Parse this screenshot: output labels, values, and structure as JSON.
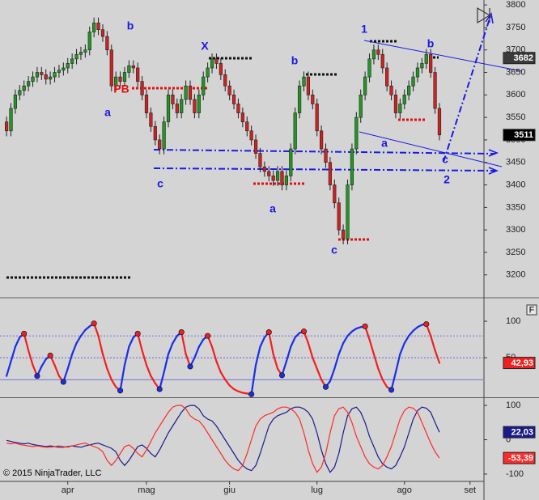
{
  "footer": "© 2015 NinjaTrader, LLC",
  "panel_button": "F",
  "chart_data": [
    {
      "type": "candlestick",
      "up_color": "#1f9a1f",
      "down_color": "#d42020",
      "xlim": [
        -1.5,
        109
      ],
      "ylim": [
        3151,
        3811
      ],
      "yticks": [
        3200,
        3250,
        3300,
        3350,
        3400,
        3450,
        3500,
        3550,
        3600,
        3650,
        3700,
        3750,
        3800
      ],
      "price_labels": [
        3682,
        3511
      ],
      "annotations": [
        "b",
        "a",
        "c",
        "X",
        "b",
        "a",
        "c",
        "1",
        "a",
        "b",
        "c",
        "2",
        "PB"
      ],
      "ohlc": [
        [
          3540,
          3552,
          3508,
          3520
        ],
        [
          3520,
          3582,
          3508,
          3570
        ],
        [
          3570,
          3612,
          3558,
          3600
        ],
        [
          3600,
          3622,
          3588,
          3610
        ],
        [
          3610,
          3632,
          3598,
          3620
        ],
        [
          3620,
          3642,
          3608,
          3630
        ],
        [
          3630,
          3652,
          3618,
          3640
        ],
        [
          3640,
          3662,
          3628,
          3650
        ],
        [
          3650,
          3662,
          3633,
          3645
        ],
        [
          3645,
          3657,
          3623,
          3635
        ],
        [
          3635,
          3652,
          3623,
          3640
        ],
        [
          3640,
          3662,
          3628,
          3650
        ],
        [
          3650,
          3667,
          3638,
          3655
        ],
        [
          3655,
          3672,
          3643,
          3660
        ],
        [
          3660,
          3682,
          3648,
          3670
        ],
        [
          3670,
          3692,
          3658,
          3680
        ],
        [
          3680,
          3702,
          3668,
          3690
        ],
        [
          3690,
          3707,
          3678,
          3695
        ],
        [
          3695,
          3712,
          3683,
          3700
        ],
        [
          3700,
          3752,
          3688,
          3740
        ],
        [
          3740,
          3772,
          3728,
          3760
        ],
        [
          3760,
          3772,
          3733,
          3745
        ],
        [
          3745,
          3757,
          3718,
          3730
        ],
        [
          3730,
          3742,
          3688,
          3700
        ],
        [
          3700,
          3712,
          3608,
          3620
        ],
        [
          3620,
          3652,
          3608,
          3640
        ],
        [
          3640,
          3652,
          3618,
          3630
        ],
        [
          3630,
          3662,
          3618,
          3650
        ],
        [
          3650,
          3677,
          3638,
          3665
        ],
        [
          3665,
          3677,
          3648,
          3660
        ],
        [
          3660,
          3672,
          3618,
          3630
        ],
        [
          3630,
          3642,
          3588,
          3600
        ],
        [
          3600,
          3612,
          3548,
          3560
        ],
        [
          3560,
          3572,
          3518,
          3530
        ],
        [
          3530,
          3542,
          3488,
          3500
        ],
        [
          3500,
          3512,
          3468,
          3480
        ],
        [
          3480,
          3552,
          3468,
          3540
        ],
        [
          3540,
          3612,
          3528,
          3600
        ],
        [
          3600,
          3612,
          3568,
          3580
        ],
        [
          3580,
          3592,
          3548,
          3560
        ],
        [
          3560,
          3602,
          3548,
          3590
        ],
        [
          3590,
          3632,
          3578,
          3620
        ],
        [
          3620,
          3632,
          3578,
          3590
        ],
        [
          3590,
          3602,
          3548,
          3560
        ],
        [
          3560,
          3612,
          3548,
          3600
        ],
        [
          3600,
          3652,
          3588,
          3640
        ],
        [
          3640,
          3672,
          3628,
          3660
        ],
        [
          3660,
          3692,
          3648,
          3680
        ],
        [
          3680,
          3692,
          3658,
          3670
        ],
        [
          3670,
          3682,
          3633,
          3645
        ],
        [
          3645,
          3657,
          3608,
          3620
        ],
        [
          3620,
          3632,
          3588,
          3600
        ],
        [
          3600,
          3612,
          3568,
          3580
        ],
        [
          3580,
          3592,
          3548,
          3560
        ],
        [
          3560,
          3572,
          3528,
          3540
        ],
        [
          3540,
          3552,
          3508,
          3520
        ],
        [
          3520,
          3532,
          3488,
          3500
        ],
        [
          3500,
          3512,
          3458,
          3470
        ],
        [
          3470,
          3482,
          3428,
          3440
        ],
        [
          3440,
          3452,
          3418,
          3430
        ],
        [
          3430,
          3442,
          3408,
          3420
        ],
        [
          3420,
          3432,
          3398,
          3410
        ],
        [
          3410,
          3442,
          3398,
          3430
        ],
        [
          3430,
          3442,
          3388,
          3400
        ],
        [
          3400,
          3432,
          3388,
          3420
        ],
        [
          3420,
          3492,
          3408,
          3480
        ],
        [
          3480,
          3572,
          3468,
          3560
        ],
        [
          3560,
          3632,
          3548,
          3620
        ],
        [
          3620,
          3652,
          3608,
          3640
        ],
        [
          3640,
          3652,
          3588,
          3600
        ],
        [
          3600,
          3612,
          3568,
          3580
        ],
        [
          3580,
          3592,
          3508,
          3520
        ],
        [
          3520,
          3532,
          3468,
          3480
        ],
        [
          3480,
          3492,
          3438,
          3450
        ],
        [
          3450,
          3462,
          3388,
          3400
        ],
        [
          3400,
          3412,
          3348,
          3360
        ],
        [
          3360,
          3372,
          3288,
          3300
        ],
        [
          3300,
          3312,
          3268,
          3280
        ],
        [
          3280,
          3412,
          3268,
          3400
        ],
        [
          3400,
          3492,
          3388,
          3480
        ],
        [
          3480,
          3562,
          3468,
          3550
        ],
        [
          3550,
          3612,
          3538,
          3600
        ],
        [
          3600,
          3652,
          3588,
          3640
        ],
        [
          3640,
          3692,
          3628,
          3680
        ],
        [
          3680,
          3712,
          3668,
          3700
        ],
        [
          3700,
          3712,
          3678,
          3690
        ],
        [
          3690,
          3702,
          3648,
          3660
        ],
        [
          3660,
          3672,
          3608,
          3620
        ],
        [
          3620,
          3632,
          3588,
          3600
        ],
        [
          3600,
          3612,
          3548,
          3560
        ],
        [
          3560,
          3592,
          3548,
          3580
        ],
        [
          3580,
          3612,
          3568,
          3600
        ],
        [
          3600,
          3632,
          3588,
          3620
        ],
        [
          3620,
          3652,
          3608,
          3640
        ],
        [
          3640,
          3672,
          3628,
          3660
        ],
        [
          3660,
          3682,
          3648,
          3670
        ],
        [
          3670,
          3702,
          3658,
          3690
        ],
        [
          3690,
          3702,
          3638,
          3650
        ],
        [
          3650,
          3662,
          3558,
          3570
        ],
        [
          3570,
          3582,
          3499,
          3511
        ]
      ]
    },
    {
      "type": "line",
      "xlim": [
        -1.5,
        109
      ],
      "ylim": [
        -3,
        130
      ],
      "yticks": [
        50,
        100
      ],
      "levels": [
        20,
        50,
        80
      ],
      "level_color": "#5050e0",
      "series": [
        {
          "up_color": "#1a2fe6",
          "down_color": "#f02020",
          "pivot_markers": true,
          "last_label": "42,93",
          "values": [
            25,
            45,
            65,
            78,
            83,
            60,
            40,
            25,
            38,
            48,
            53,
            40,
            25,
            17,
            35,
            55,
            70,
            80,
            88,
            93,
            97,
            80,
            55,
            35,
            20,
            10,
            5,
            40,
            65,
            78,
            83,
            60,
            40,
            25,
            15,
            7,
            30,
            55,
            70,
            80,
            85,
            55,
            38,
            50,
            65,
            75,
            80,
            65,
            45,
            30,
            20,
            12,
            7,
            4,
            2,
            1,
            0,
            40,
            65,
            78,
            85,
            55,
            35,
            26,
            45,
            65,
            78,
            84,
            86,
            70,
            50,
            35,
            20,
            10,
            18,
            35,
            55,
            70,
            80,
            86,
            90,
            92,
            93,
            75,
            55,
            35,
            20,
            10,
            6,
            30,
            55,
            70,
            80,
            87,
            92,
            95,
            96,
            80,
            60,
            42.93
          ]
        }
      ]
    },
    {
      "type": "line",
      "xlim": [
        -1.5,
        109
      ],
      "ylim": [
        -119,
        119
      ],
      "yticks": [
        100,
        0,
        -100
      ],
      "xticks": [
        {
          "value": 14,
          "label": "apr"
        },
        {
          "value": 32,
          "label": "mag"
        },
        {
          "value": 51,
          "label": "giu"
        },
        {
          "value": 71,
          "label": "lug"
        },
        {
          "value": 91,
          "label": "ago"
        },
        {
          "value": 106,
          "label": "set"
        }
      ],
      "series": [
        {
          "color": "#1a1a8c",
          "last_label": "22,03",
          "values": [
            -2,
            -5,
            -8,
            -10,
            -12,
            -10,
            -14,
            -16,
            -18,
            -20,
            -18,
            -20,
            -22,
            -22,
            -20,
            -18,
            -20,
            -22,
            -18,
            -15,
            -12,
            -10,
            -15,
            -20,
            -25,
            -35,
            -60,
            -75,
            -60,
            -40,
            -20,
            -15,
            -25,
            -40,
            -50,
            -30,
            -5,
            20,
            40,
            60,
            80,
            95,
            100,
            100,
            90,
            70,
            60,
            55,
            40,
            20,
            0,
            -20,
            -40,
            -60,
            -75,
            -85,
            -90,
            -75,
            -40,
            0,
            40,
            60,
            70,
            75,
            80,
            90,
            95,
            95,
            90,
            80,
            60,
            20,
            -30,
            -70,
            -95,
            -80,
            -40,
            20,
            70,
            90,
            95,
            80,
            50,
            10,
            -20,
            -50,
            -70,
            -80,
            -85,
            -75,
            -50,
            -20,
            20,
            60,
            85,
            95,
            92,
            80,
            50,
            22.03
          ]
        },
        {
          "color": "#ff2a2a",
          "last_label": "-53,39",
          "values": [
            -10,
            -12,
            -10,
            -14,
            -16,
            -18,
            -20,
            -18,
            -20,
            -22,
            -22,
            -20,
            -18,
            -20,
            -22,
            -18,
            -15,
            -12,
            -10,
            -15,
            -20,
            -25,
            -35,
            -60,
            -75,
            -60,
            -40,
            -20,
            -15,
            -25,
            -40,
            -50,
            -30,
            -5,
            20,
            40,
            60,
            80,
            95,
            100,
            100,
            90,
            70,
            60,
            55,
            40,
            20,
            0,
            -20,
            -40,
            -60,
            -75,
            -85,
            -90,
            -75,
            -40,
            0,
            40,
            60,
            70,
            75,
            80,
            90,
            95,
            95,
            90,
            80,
            60,
            20,
            -30,
            -70,
            -95,
            -80,
            -40,
            20,
            70,
            90,
            95,
            80,
            50,
            10,
            -20,
            -50,
            -70,
            -80,
            -85,
            -75,
            -50,
            -20,
            20,
            60,
            85,
            95,
            92,
            80,
            50,
            20,
            -10,
            -35,
            -53.39
          ]
        }
      ]
    }
  ]
}
